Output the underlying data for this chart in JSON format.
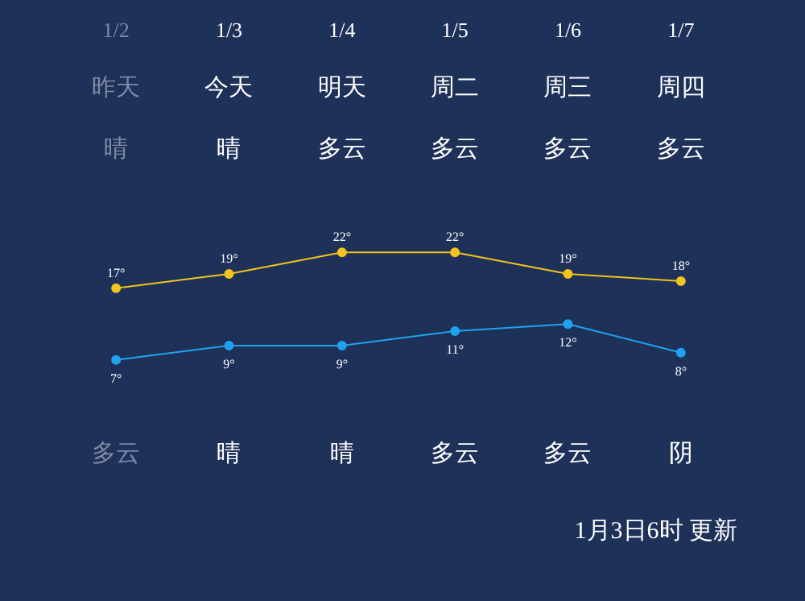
{
  "chart_data": {
    "type": "line",
    "categories": [
      "1/2",
      "1/3",
      "1/4",
      "1/5",
      "1/6",
      "1/7"
    ],
    "series": [
      {
        "color": "#f2c41c",
        "values": [
          17,
          19,
          22,
          22,
          19,
          18
        ],
        "value_labels": [
          "17°",
          "19°",
          "22°",
          "22°",
          "19°",
          "18°"
        ]
      },
      {
        "color": "#1fa3f0",
        "values": [
          7,
          9,
          9,
          11,
          12,
          8
        ],
        "value_labels": [
          "7°",
          "9°",
          "9°",
          "11°",
          "12°",
          "8°"
        ]
      }
    ],
    "marker": "circle",
    "annotations": [
      "昨天",
      "今天",
      "明天",
      "周二",
      "周三",
      "周四",
      "晴",
      "晴",
      "多云",
      "多云",
      "多云",
      "多云",
      "多云",
      "晴",
      "晴",
      "多云",
      "多云",
      "阴",
      "1月3日6时 更新"
    ]
  }
}
